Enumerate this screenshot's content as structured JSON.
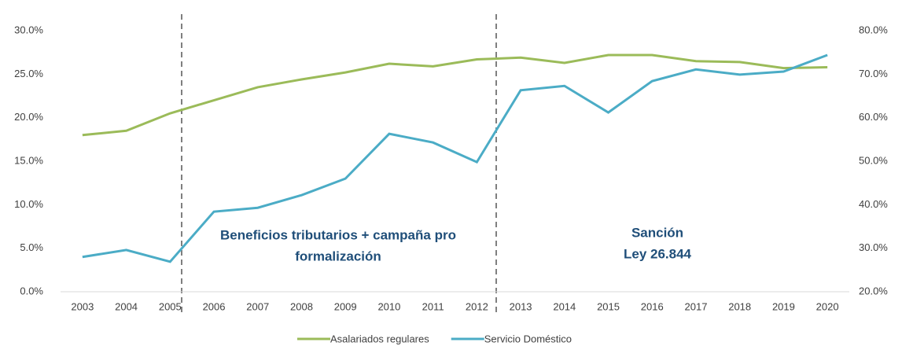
{
  "chart_data": {
    "type": "line",
    "categories": [
      "2003",
      "2004",
      "2005",
      "2006",
      "2007",
      "2008",
      "2009",
      "2010",
      "2011",
      "2012",
      "2013",
      "2014",
      "2015",
      "2016",
      "2017",
      "2018",
      "2019",
      "2020"
    ],
    "series": [
      {
        "name": "Asalariados regulares",
        "color": "#9bbb59",
        "values": [
          18.0,
          18.5,
          20.5,
          22.0,
          23.5,
          24.4,
          25.2,
          26.2,
          25.9,
          26.7,
          26.9,
          26.3,
          27.2,
          27.2,
          26.5,
          26.4,
          25.7,
          25.8
        ]
      },
      {
        "name": "Servicio Doméstico",
        "color": "#4bacc6",
        "axis": "y2",
        "values": [
          28.0,
          29.6,
          26.9,
          38.4,
          39.3,
          42.2,
          46.0,
          56.3,
          54.3,
          49.8,
          66.3,
          67.3,
          61.2,
          68.4,
          71.1,
          69.9,
          70.6,
          74.4
        ]
      }
    ],
    "ylim": [
      0,
      30
    ],
    "yticks": [
      {
        "value": 0,
        "label": "0.0%"
      },
      {
        "value": 5,
        "label": "5.0%"
      },
      {
        "value": 10,
        "label": "10.0%"
      },
      {
        "value": 15,
        "label": "15.0%"
      },
      {
        "value": 20,
        "label": "20.0%"
      },
      {
        "value": 25,
        "label": "25.0%"
      },
      {
        "value": 30,
        "label": "30.0%"
      }
    ],
    "y2lim": [
      20,
      80
    ],
    "y2ticks": [
      {
        "value": 20,
        "label": "20.0%"
      },
      {
        "value": 30,
        "label": "30.0%"
      },
      {
        "value": 40,
        "label": "40.0%"
      },
      {
        "value": 50,
        "label": "50.0%"
      },
      {
        "value": 60,
        "label": "60.0%"
      },
      {
        "value": 70,
        "label": "70.0%"
      },
      {
        "value": 80,
        "label": "80.0%"
      }
    ],
    "annotations": [
      {
        "lines": [
          "Beneficios tributarios + campaña pro",
          "formalización"
        ]
      },
      {
        "lines": [
          "Sanción",
          "Ley 26.844"
        ]
      }
    ],
    "legend": "bottom"
  }
}
